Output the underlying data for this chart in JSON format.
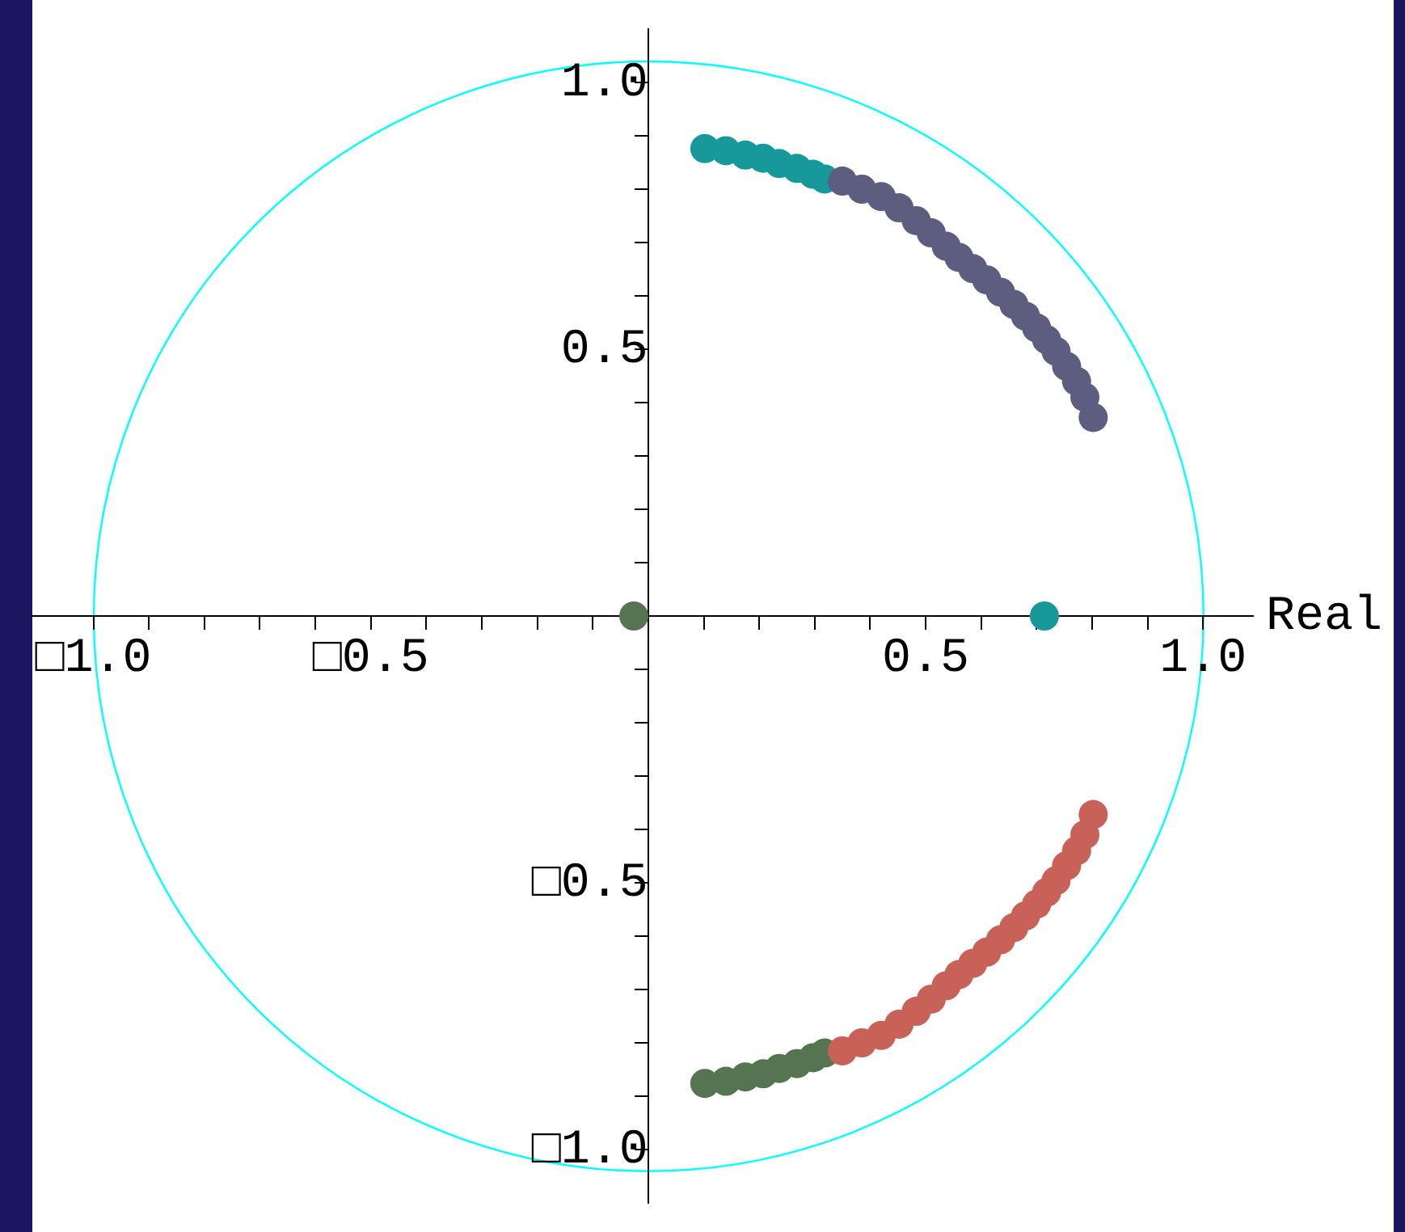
{
  "chart_data": {
    "type": "scatter",
    "xlabel": "Real",
    "marker": "circle",
    "grid": false,
    "legend": false,
    "xlim": [
      -1.11,
      1.09
    ],
    "ylim": [
      -1.1,
      1.1
    ],
    "xticks": [
      {
        "value": -1,
        "label": "□1.0"
      },
      {
        "value": -0.9,
        "label": null
      },
      {
        "value": -0.8,
        "label": null
      },
      {
        "value": -0.7,
        "label": null
      },
      {
        "value": -0.6,
        "label": null
      },
      {
        "value": -0.5,
        "label": "□0.5"
      },
      {
        "value": -0.4,
        "label": null
      },
      {
        "value": -0.3,
        "label": null
      },
      {
        "value": -0.2,
        "label": null
      },
      {
        "value": -0.1,
        "label": null
      },
      {
        "value": 0.1,
        "label": null
      },
      {
        "value": 0.2,
        "label": null
      },
      {
        "value": 0.3,
        "label": null
      },
      {
        "value": 0.4,
        "label": null
      },
      0.5,
      {
        "value": 0.6,
        "label": null
      },
      {
        "value": 0.7,
        "label": null
      },
      {
        "value": 0.8,
        "label": null
      },
      {
        "value": 0.9,
        "label": null
      },
      {
        "value": 1,
        "label": "1.0"
      }
    ],
    "yticks": [
      {
        "value": -1,
        "label": "□1.0"
      },
      {
        "value": -0.9,
        "label": null
      },
      {
        "value": -0.8,
        "label": null
      },
      {
        "value": -0.7,
        "label": null
      },
      {
        "value": -0.6,
        "label": null
      },
      {
        "value": -0.5,
        "label": "□0.5"
      },
      {
        "value": -0.4,
        "label": null
      },
      {
        "value": -0.3,
        "label": null
      },
      {
        "value": -0.2,
        "label": null
      },
      {
        "value": -0.1,
        "label": null
      },
      {
        "value": 0.1,
        "label": null
      },
      {
        "value": 0.2,
        "label": null
      },
      {
        "value": 0.3,
        "label": null
      },
      {
        "value": 0.4,
        "label": null
      },
      0.5,
      {
        "value": 0.6,
        "label": null
      },
      {
        "value": 0.7,
        "label": null
      },
      {
        "value": 0.8,
        "label": null
      },
      {
        "value": 0.9,
        "label": null
      },
      {
        "value": 1,
        "label": "1.0"
      }
    ],
    "series": [
      {
        "color": "#5d5d80",
        "x": [
          0.35,
          0.385,
          0.42,
          0.452,
          0.483,
          0.51,
          0.537,
          0.56,
          0.585,
          0.61,
          0.635,
          0.659,
          0.68,
          0.7,
          0.718,
          0.735,
          0.754,
          0.772,
          0.787,
          0.802
        ],
        "values": [
          0.815,
          0.8,
          0.786,
          0.765,
          0.741,
          0.718,
          0.693,
          0.672,
          0.651,
          0.63,
          0.607,
          0.584,
          0.562,
          0.54,
          0.518,
          0.496,
          0.468,
          0.44,
          0.41,
          0.372
        ]
      },
      {
        "color": "#c86158",
        "x": [
          0.35,
          0.385,
          0.42,
          0.452,
          0.483,
          0.51,
          0.537,
          0.56,
          0.585,
          0.61,
          0.635,
          0.659,
          0.68,
          0.7,
          0.718,
          0.735,
          0.754,
          0.772,
          0.787,
          0.802
        ],
        "values": [
          -0.815,
          -0.8,
          -0.786,
          -0.765,
          -0.741,
          -0.718,
          -0.693,
          -0.672,
          -0.651,
          -0.63,
          -0.607,
          -0.584,
          -0.562,
          -0.54,
          -0.518,
          -0.496,
          -0.468,
          -0.44,
          -0.41,
          -0.372
        ]
      },
      {
        "color": "#17999b",
        "x": [
          0.102,
          0.14,
          0.175,
          0.207,
          0.236,
          0.268,
          0.297,
          0.318,
          0.714
        ],
        "values": [
          0.876,
          0.872,
          0.864,
          0.858,
          0.848,
          0.839,
          0.828,
          0.819,
          0
        ]
      },
      {
        "color": "#567352",
        "x": [
          0.102,
          0.14,
          0.175,
          0.207,
          0.236,
          0.268,
          0.297,
          0.318,
          -0.026
        ],
        "values": [
          -0.876,
          -0.872,
          -0.864,
          -0.858,
          -0.848,
          -0.839,
          -0.828,
          -0.819,
          0
        ]
      }
    ]
  }
}
